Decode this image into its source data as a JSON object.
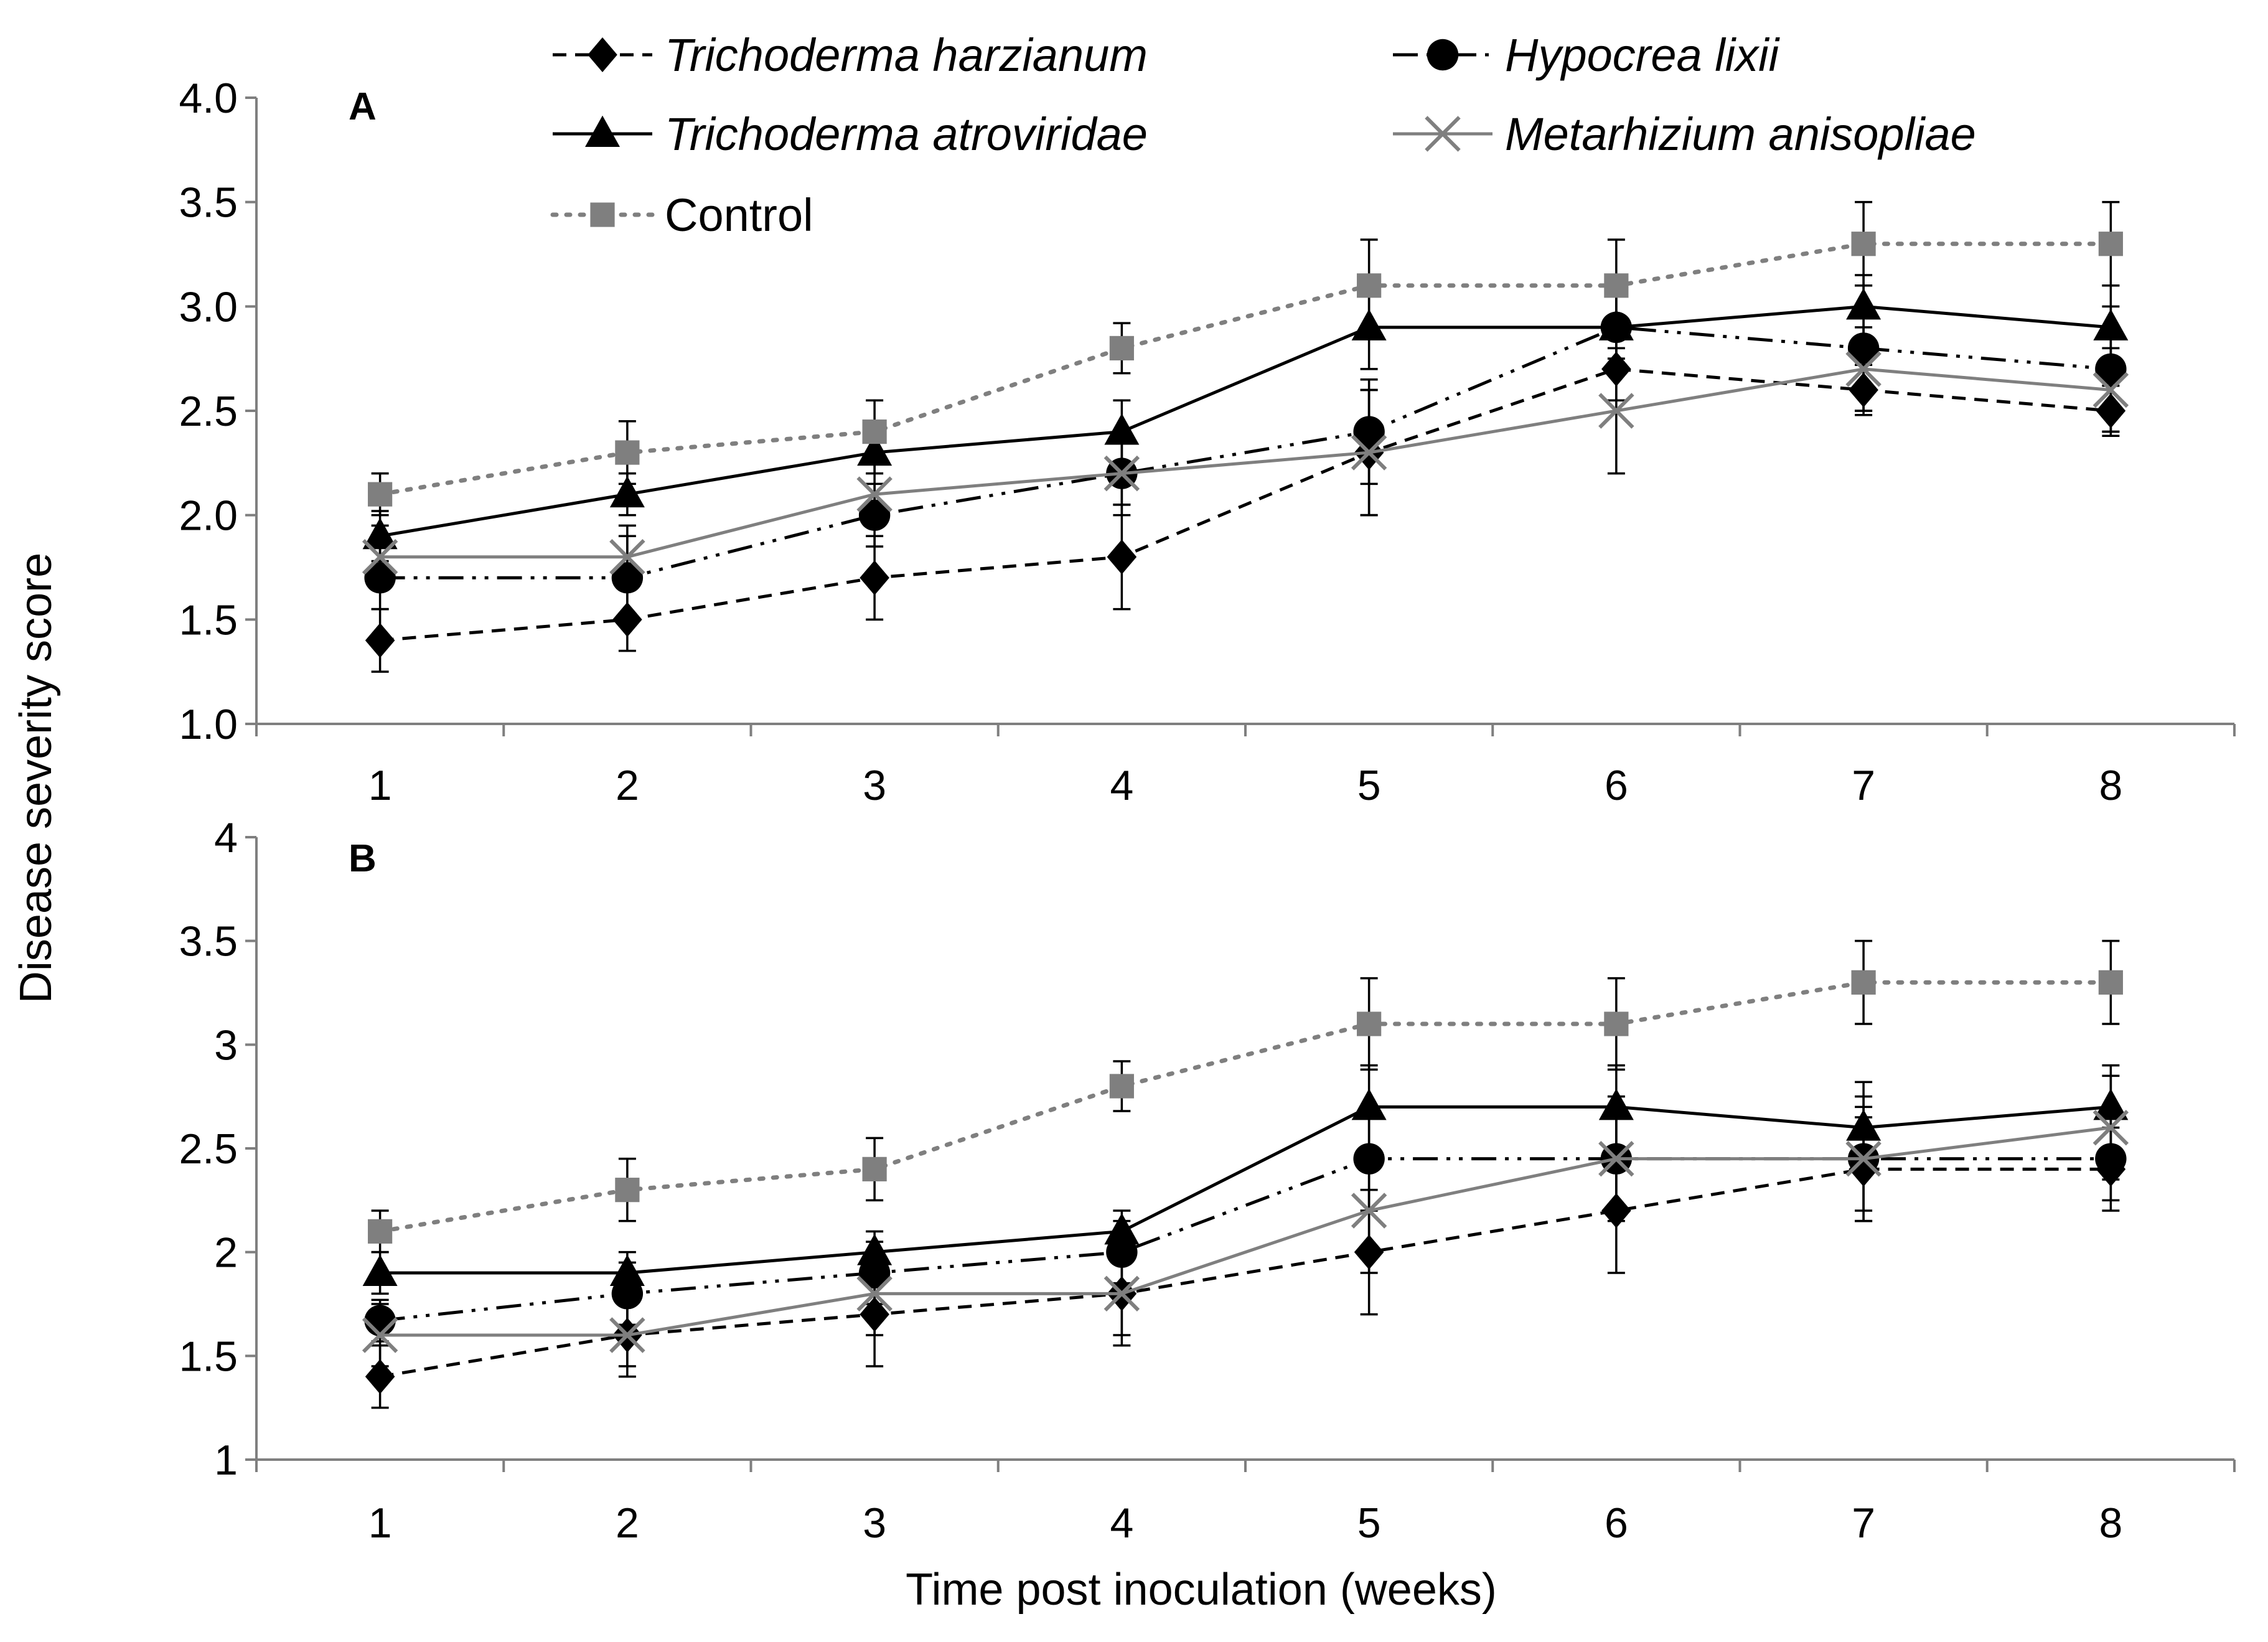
{
  "figure": {
    "ylabel": "Disease severity score",
    "xlabel": "Time post inoculation (weeks)"
  },
  "series_styles": [
    {
      "name": "Trichoderma harzianum",
      "italic": true,
      "color": "#000000",
      "dash": "dashed",
      "marker": "diamond"
    },
    {
      "name": "Hypocrea lixii",
      "italic": true,
      "color": "#000000",
      "dash": "dash-dot-dot",
      "marker": "circle"
    },
    {
      "name": "Trichoderma atroviridae",
      "italic": true,
      "color": "#000000",
      "dash": "solid",
      "marker": "triangle"
    },
    {
      "name": "Metarhizium anisopliae",
      "italic": true,
      "color": "#7f7f7f",
      "dash": "solid",
      "marker": "x"
    },
    {
      "name": "Control",
      "italic": false,
      "color": "#7f7f7f",
      "dash": "dotted",
      "marker": "square"
    }
  ],
  "legend": {
    "items": [
      "Trichoderma harzianum",
      "Hypocrea lixii",
      "Trichoderma atroviridae",
      "Metarhizium anisopliae",
      "Control"
    ],
    "placement": "top"
  },
  "chart_data": [
    {
      "type": "line",
      "title": "A",
      "xlabel": "Time post inoculation (weeks)",
      "ylabel": "Disease severity score",
      "categories": [
        "1",
        "2",
        "3",
        "4",
        "5",
        "6",
        "7",
        "8"
      ],
      "ylim": [
        1.0,
        4.0
      ],
      "yticks": [
        "1.0",
        "1.5",
        "2.0",
        "2.5",
        "3.0",
        "3.5",
        "4.0"
      ],
      "grid": false,
      "series": [
        {
          "name": "Trichoderma harzianum",
          "values": [
            1.4,
            1.5,
            1.7,
            1.8,
            2.3,
            2.7,
            2.6,
            2.5
          ],
          "errors": [
            0.15,
            0.15,
            0.2,
            0.25,
            0.3,
            0.15,
            0.12,
            0.12
          ]
        },
        {
          "name": "Hypocrea lixii",
          "values": [
            1.7,
            1.7,
            2.0,
            2.2,
            2.4,
            2.9,
            2.8,
            2.7
          ],
          "errors": [
            0.15,
            0.2,
            0.15,
            0.2,
            0.25,
            0.2,
            0.3,
            0.3
          ]
        },
        {
          "name": "Trichoderma atroviridae",
          "values": [
            1.9,
            2.1,
            2.3,
            2.4,
            2.9,
            2.9,
            3.0,
            2.9
          ],
          "errors": [
            0.12,
            0.1,
            0.1,
            0.15,
            0.2,
            0.15,
            0.15,
            0.2
          ]
        },
        {
          "name": "Metarhizium anisopliae",
          "values": [
            1.8,
            1.8,
            2.1,
            2.2,
            2.3,
            2.5,
            2.7,
            2.6
          ],
          "errors": [
            0.15,
            0.15,
            0.15,
            0.15,
            0.3,
            0.3,
            0.2,
            0.2
          ]
        },
        {
          "name": "Control",
          "values": [
            2.1,
            2.3,
            2.4,
            2.8,
            3.1,
            3.1,
            3.3,
            3.3
          ],
          "errors": [
            0.1,
            0.15,
            0.15,
            0.12,
            0.22,
            0.22,
            0.2,
            0.2
          ]
        }
      ]
    },
    {
      "type": "line",
      "title": "B",
      "xlabel": "Time post inoculation (weeks)",
      "ylabel": "Disease severity score",
      "categories": [
        "1",
        "2",
        "3",
        "4",
        "5",
        "6",
        "7",
        "8"
      ],
      "ylim": [
        1,
        4
      ],
      "yticks": [
        "1",
        "1.5",
        "2",
        "2.5",
        "3",
        "3.5",
        "4"
      ],
      "grid": false,
      "series": [
        {
          "name": "Trichoderma harzianum",
          "values": [
            1.4,
            1.6,
            1.7,
            1.8,
            2.0,
            2.2,
            2.4,
            2.4
          ],
          "errors": [
            0.15,
            0.2,
            0.25,
            0.25,
            0.3,
            0.3,
            0.25,
            0.2
          ]
        },
        {
          "name": "Hypocrea lixii",
          "values": [
            1.67,
            1.8,
            1.9,
            2.0,
            2.45,
            2.45,
            2.45,
            2.45
          ],
          "errors": [
            0.1,
            0.15,
            0.15,
            0.15,
            0.25,
            0.25,
            0.25,
            0.2
          ]
        },
        {
          "name": "Trichoderma atroviridae",
          "values": [
            1.9,
            1.9,
            2.0,
            2.1,
            2.7,
            2.7,
            2.6,
            2.7
          ],
          "errors": [
            0.1,
            0.1,
            0.1,
            0.1,
            0.2,
            0.2,
            0.22,
            0.2
          ]
        },
        {
          "name": "Metarhizium anisopliae",
          "values": [
            1.6,
            1.6,
            1.8,
            1.8,
            2.2,
            2.45,
            2.45,
            2.6
          ],
          "errors": [
            0.15,
            0.15,
            0.2,
            0.2,
            0.3,
            0.3,
            0.3,
            0.25
          ]
        },
        {
          "name": "Control",
          "values": [
            2.1,
            2.3,
            2.4,
            2.8,
            3.1,
            3.1,
            3.3,
            3.3
          ],
          "errors": [
            0.1,
            0.15,
            0.15,
            0.12,
            0.22,
            0.22,
            0.2,
            0.2
          ]
        }
      ]
    }
  ]
}
